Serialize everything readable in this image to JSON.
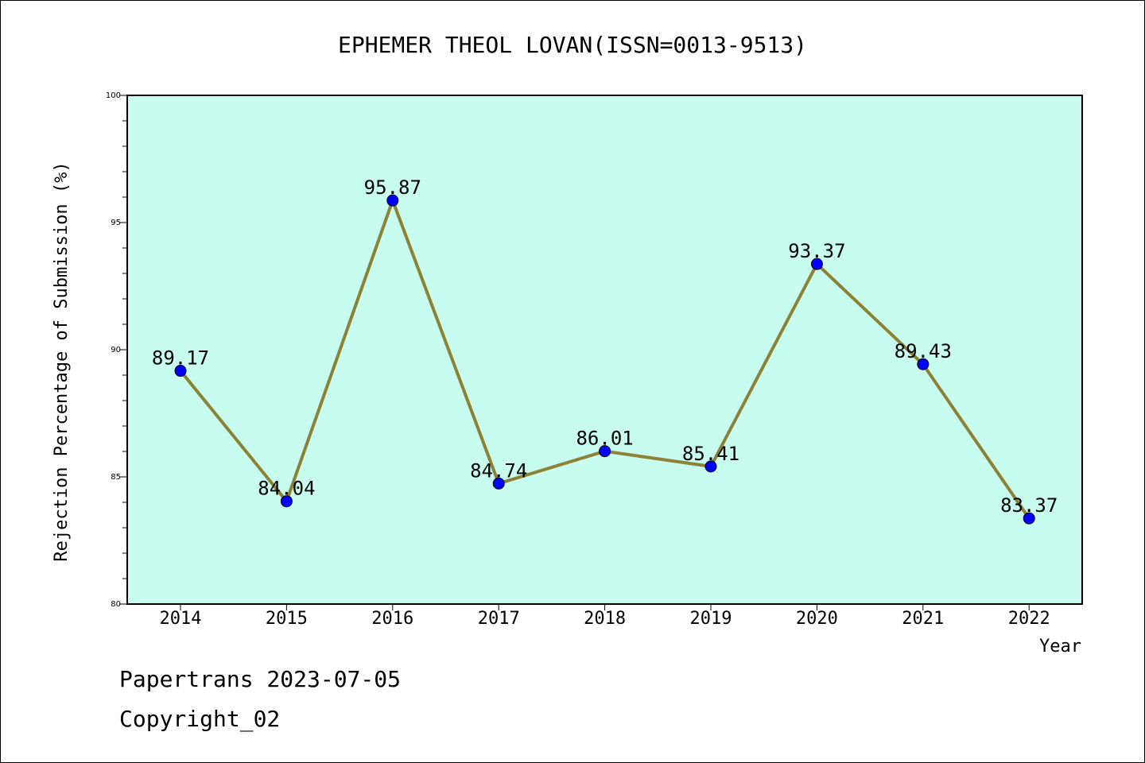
{
  "chart_data": {
    "type": "line",
    "title": "EPHEMER THEOL LOVAN(ISSN=0013-9513)",
    "xlabel": "Year",
    "ylabel": "Rejection Percentage of Submission (%)",
    "categories": [
      "2014",
      "2015",
      "2016",
      "2017",
      "2018",
      "2019",
      "2020",
      "2021",
      "2022"
    ],
    "values": [
      89.17,
      84.04,
      95.87,
      84.74,
      86.01,
      85.41,
      93.37,
      89.43,
      83.37
    ],
    "data_labels": [
      "89.17",
      "84.04",
      "95.87",
      "84.74",
      "86.01",
      "85.41",
      "93.37",
      "89.43",
      "83.37"
    ],
    "ylim": [
      80,
      100
    ],
    "yticks": [
      "80",
      "85",
      "90",
      "95",
      "100"
    ],
    "grid": false,
    "colors": {
      "plot_background": "#c8fcee",
      "line": "#8b8236",
      "marker": "#0000ff",
      "marker_edge": "#000000"
    }
  },
  "footer": {
    "line1": "Papertrans 2023-07-05",
    "line2": "Copyright_02"
  }
}
